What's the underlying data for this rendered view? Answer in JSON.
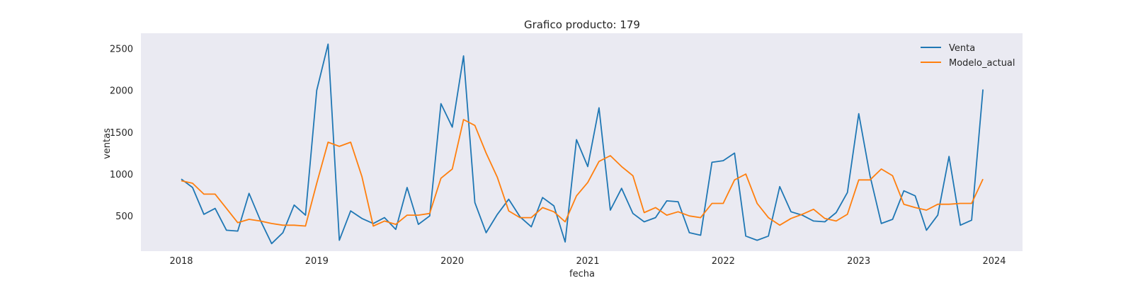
{
  "chart_data": {
    "type": "line",
    "title": "Grafico producto: 179",
    "xlabel": "fecha",
    "ylabel": "ventas",
    "x_start": "2018-01",
    "x_end": "2023-12",
    "x_ticks": [
      "2018",
      "2019",
      "2020",
      "2021",
      "2022",
      "2023",
      "2024"
    ],
    "y_ticks": [
      500,
      1000,
      1500,
      2000,
      2500
    ],
    "ylim": [
      80,
      2680
    ],
    "grid": false,
    "legend_position": "top-right",
    "series": [
      {
        "name": "Venta",
        "color": "#1f77b4",
        "values": [
          940,
          840,
          520,
          590,
          330,
          320,
          770,
          450,
          170,
          300,
          630,
          510,
          2000,
          2550,
          210,
          560,
          470,
          410,
          480,
          340,
          840,
          400,
          500,
          1840,
          1560,
          2410,
          660,
          300,
          520,
          700,
          490,
          370,
          720,
          620,
          190,
          1410,
          1090,
          1790,
          570,
          830,
          530,
          430,
          480,
          680,
          670,
          300,
          270,
          1140,
          1160,
          1250,
          260,
          210,
          260,
          850,
          550,
          510,
          440,
          430,
          540,
          780,
          1720,
          980,
          410,
          460,
          800,
          740,
          330,
          510,
          1210,
          390,
          450,
          2010
        ]
      },
      {
        "name": "Modelo_actual",
        "color": "#ff7f0e",
        "values": [
          920,
          890,
          760,
          760,
          590,
          420,
          460,
          440,
          410,
          390,
          390,
          380,
          890,
          1380,
          1330,
          1380,
          970,
          380,
          440,
          400,
          510,
          510,
          530,
          950,
          1060,
          1650,
          1580,
          1250,
          960,
          560,
          480,
          480,
          600,
          550,
          430,
          740,
          900,
          1150,
          1220,
          1090,
          980,
          540,
          600,
          510,
          550,
          500,
          480,
          650,
          650,
          930,
          1000,
          650,
          480,
          390,
          470,
          520,
          580,
          470,
          440,
          520,
          930,
          930,
          1060,
          980,
          640,
          600,
          570,
          640,
          640,
          650,
          650,
          940
        ]
      }
    ]
  }
}
